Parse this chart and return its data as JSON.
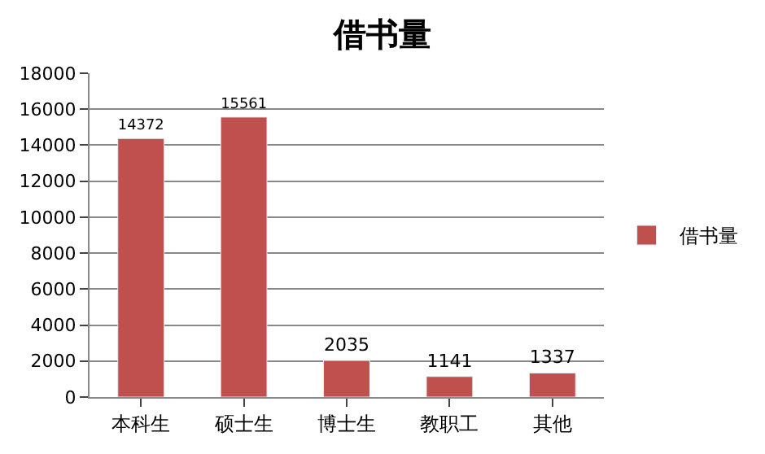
{
  "chart_data": {
    "type": "bar",
    "title": "借书量",
    "categories": [
      "本科生",
      "硕士生",
      "博士生",
      "教职工",
      "其他"
    ],
    "series": [
      {
        "name": "借书量",
        "color": "#c0504d",
        "values": [
          14372,
          15561,
          2035,
          1141,
          1337
        ]
      }
    ],
    "ylim": [
      0,
      18000
    ],
    "yticks": [
      0,
      2000,
      4000,
      6000,
      8000,
      10000,
      12000,
      14000,
      16000,
      18000
    ],
    "grid": "y",
    "legend": "right",
    "data_labels": true
  }
}
